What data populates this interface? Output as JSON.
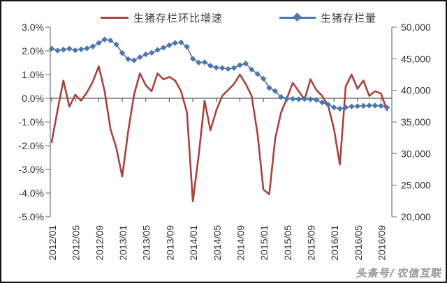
{
  "page": {
    "watermark": "头条号/ 农信互联"
  },
  "chart_data": {
    "type": "line",
    "title": "",
    "legend_position": "top",
    "grid": false,
    "x": [
      "2012/01",
      "2012/02",
      "2012/03",
      "2012/04",
      "2012/05",
      "2012/06",
      "2012/07",
      "2012/08",
      "2012/09",
      "2012/10",
      "2012/11",
      "2012/12",
      "2013/01",
      "2013/02",
      "2013/03",
      "2013/04",
      "2013/05",
      "2013/06",
      "2013/07",
      "2013/08",
      "2013/09",
      "2013/10",
      "2013/11",
      "2013/12",
      "2014/01",
      "2014/02",
      "2014/03",
      "2014/04",
      "2014/05",
      "2014/06",
      "2014/07",
      "2014/08",
      "2014/09",
      "2014/10",
      "2014/11",
      "2014/12",
      "2015/01",
      "2015/02",
      "2015/03",
      "2015/04",
      "2015/05",
      "2015/06",
      "2015/07",
      "2015/08",
      "2015/09",
      "2015/10",
      "2015/11",
      "2015/12",
      "2016/01",
      "2016/02",
      "2016/03",
      "2016/04",
      "2016/05",
      "2016/06",
      "2016/07",
      "2016/08",
      "2016/09",
      "2016/10"
    ],
    "x_tick_labels": [
      "2012/01",
      "2012/05",
      "2012/09",
      "2013/01",
      "2013/05",
      "2013/09",
      "2014/01",
      "2014/05",
      "2014/09",
      "2015/01",
      "2015/05",
      "2015/09",
      "2016/01",
      "2016/05",
      "2016/09"
    ],
    "series": [
      {
        "name": "生猪存栏环比增速",
        "axis": "left",
        "unit": "%",
        "color": "#a8433f",
        "marker": "none",
        "values": [
          -1.85,
          -0.5,
          0.75,
          -0.35,
          0.15,
          -0.1,
          0.25,
          0.7,
          1.35,
          0.3,
          -1.3,
          -2.1,
          -3.3,
          -1.4,
          0.15,
          1.05,
          0.55,
          0.3,
          1.05,
          0.8,
          0.9,
          0.75,
          0.3,
          -0.6,
          -4.35,
          -2.4,
          -0.1,
          -1.35,
          -0.5,
          0.1,
          0.35,
          0.6,
          1.0,
          0.6,
          0.1,
          -1.5,
          -3.85,
          -4.05,
          -1.7,
          -0.6,
          0.0,
          0.65,
          0.3,
          -0.05,
          0.8,
          0.35,
          0.1,
          -0.3,
          -1.3,
          -2.8,
          0.5,
          1.0,
          0.4,
          0.75,
          0.1,
          0.3,
          0.2,
          -0.5
        ]
      },
      {
        "name": "生猪存栏量",
        "axis": "right",
        "unit": "万头",
        "color": "#4b77ae",
        "marker": "diamond",
        "values": [
          46600,
          46300,
          46450,
          46600,
          46350,
          46500,
          46650,
          46950,
          47500,
          48050,
          47900,
          47250,
          45900,
          44950,
          44750,
          45250,
          45700,
          45950,
          46400,
          46750,
          47150,
          47500,
          47600,
          46900,
          45000,
          44400,
          44450,
          43900,
          43600,
          43550,
          43400,
          43550,
          44000,
          44250,
          43300,
          42600,
          41850,
          40400,
          39900,
          38950,
          38700,
          38650,
          38600,
          38650,
          38600,
          38500,
          38100,
          37750,
          37300,
          37100,
          37300,
          37450,
          37500,
          37550,
          37600,
          37600,
          37550,
          37300
        ]
      }
    ],
    "left_axis": {
      "min": -5,
      "max": 3,
      "tick_step": 1,
      "format": "percent",
      "labels": [
        "3.0%",
        "2.0%",
        "1.0%",
        "0.0%",
        "-1.0%",
        "-2.0%",
        "-3.0%",
        "-4.0%",
        "-5.0%"
      ]
    },
    "right_axis": {
      "min": 20000,
      "max": 50000,
      "tick_step": 5000,
      "format": "thousands",
      "labels": [
        "50,000",
        "45,000",
        "40,000",
        "35,000",
        "30,000",
        "25,000",
        "20,000"
      ]
    }
  }
}
